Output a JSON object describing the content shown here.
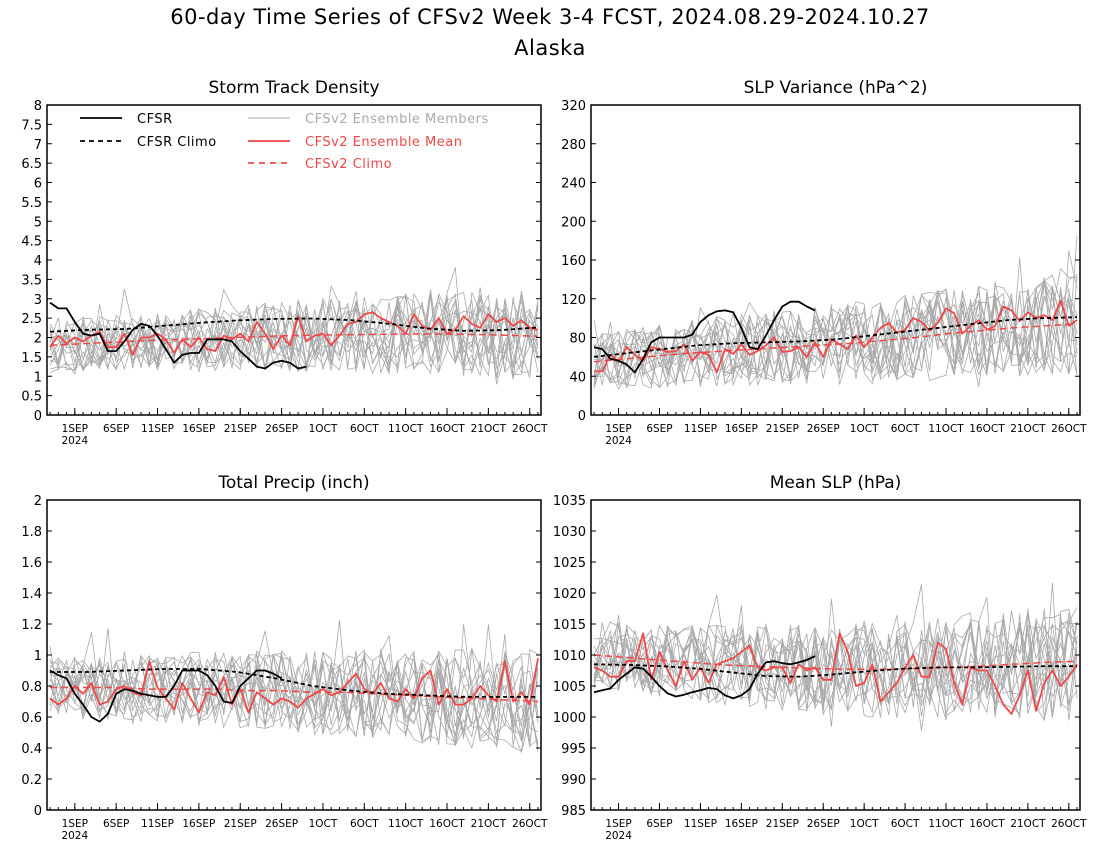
{
  "figure": {
    "title": "60-day Time Series of CFSv2 Week 3-4 FCST, 2024.08.29-2024.10.27",
    "region": "Alaska"
  },
  "colors": {
    "cfsr": "#000000",
    "cfsr_climo": "#000000",
    "members": "#a9a9a9",
    "ens_mean": "#f04848",
    "cfsv2_climo": "#f04848"
  },
  "legend": {
    "cfsr": "CFSR",
    "cfsr_climo": "CFSR Climo",
    "members": "CFSv2 Ensemble Members",
    "ens_mean": "CFSv2 Ensemble Mean",
    "cfsv2_climo": "CFSv2 Climo"
  },
  "x_ticks": {
    "labels": [
      "1SEP",
      "6SEP",
      "11SEP",
      "16SEP",
      "21SEP",
      "26SEP",
      "1OCT",
      "6OCT",
      "11OCT",
      "16OCT",
      "21OCT",
      "26OCT"
    ],
    "year_label": "2024"
  },
  "chart_data": [
    {
      "type": "line",
      "title": "Storm Track Density",
      "xlabel": "",
      "ylabel": "",
      "x_range": [
        "2024-08-29",
        "2024-10-27"
      ],
      "ylim": [
        0,
        8
      ],
      "yticks": [
        "0",
        "0.5",
        "1",
        "1.5",
        "2",
        "2.5",
        "3",
        "3.5",
        "4",
        "4.5",
        "5",
        "5.5",
        "6",
        "6.5",
        "7",
        "7.5",
        "8"
      ],
      "legend_location": "top-left",
      "series": [
        {
          "name": "CFSR",
          "start": "2024-08-29",
          "values": [
            2.9,
            2.75,
            2.75,
            2.4,
            2.1,
            2.05,
            2.1,
            1.65,
            1.65,
            1.9,
            2.2,
            2.35,
            2.3,
            2.05,
            1.7,
            1.35,
            1.55,
            1.6,
            1.6,
            1.95,
            1.95,
            1.95,
            1.9,
            1.65,
            1.45,
            1.25,
            1.2,
            1.35,
            1.4,
            1.35,
            1.2,
            1.25
          ]
        },
        {
          "name": "CFSR Climo",
          "start": "2024-08-29",
          "values": [
            2.15,
            2.2,
            2.22,
            2.3,
            2.38,
            2.44,
            2.48,
            2.49,
            2.45,
            2.36,
            2.24,
            2.17,
            2.19,
            2.26
          ]
        },
        {
          "name": "CFSv2 Ensemble Mean",
          "start": "2024-08-29",
          "values": [
            1.75,
            2.05,
            1.85,
            2.0,
            1.9,
            2.05,
            2.15,
            1.75,
            1.75,
            2.1,
            1.55,
            2.0,
            2.0,
            2.1,
            1.95,
            1.6,
            1.95,
            1.75,
            2.0,
            1.7,
            1.65,
            2.05,
            1.95,
            2.1,
            1.9,
            2.4,
            2.1,
            1.7,
            2.05,
            1.8,
            2.55,
            1.9,
            2.05,
            2.1,
            1.8,
            2.05,
            2.35,
            2.4,
            2.6,
            2.65,
            2.5,
            2.4,
            2.3,
            2.1,
            2.6,
            2.3,
            2.2,
            2.5,
            2.1,
            2.2,
            2.55,
            2.35,
            2.25,
            2.6,
            2.4,
            2.5,
            2.3,
            2.45,
            2.25,
            2.2
          ]
        },
        {
          "name": "CFSv2 Climo",
          "start": "2024-08-29",
          "values": [
            1.8,
            1.84,
            1.88,
            1.92,
            1.95,
            1.98,
            2.01,
            2.04,
            2.06,
            2.07,
            2.08,
            2.09,
            2.09,
            2.08,
            2.06,
            2.03
          ]
        }
      ],
      "members": {
        "count": 16,
        "spread": 0.55
      }
    },
    {
      "type": "line",
      "title": "SLP Variance (hPa^2)",
      "xlabel": "",
      "ylabel": "",
      "x_range": [
        "2024-08-29",
        "2024-10-27"
      ],
      "ylim": [
        0,
        320
      ],
      "yticks": [
        "0",
        "40",
        "80",
        "120",
        "160",
        "200",
        "240",
        "280",
        "320"
      ],
      "series": [
        {
          "name": "CFSR",
          "start": "2024-08-29",
          "values": [
            70,
            68,
            58,
            56,
            52,
            44,
            58,
            75,
            80,
            80,
            80,
            80,
            83,
            96,
            103,
            107,
            108,
            106,
            90,
            70,
            68,
            82,
            98,
            112,
            117,
            117,
            112,
            108
          ]
        },
        {
          "name": "CFSR Climo",
          "start": "2024-08-29",
          "values": [
            60,
            64,
            68,
            72,
            74,
            75,
            76,
            78,
            82,
            86,
            90,
            94,
            98,
            100,
            101
          ]
        },
        {
          "name": "CFSv2 Ensemble Mean",
          "start": "2024-08-29",
          "values": [
            45,
            45,
            62,
            55,
            70,
            62,
            56,
            70,
            68,
            65,
            66,
            73,
            56,
            65,
            62,
            44,
            68,
            63,
            73,
            62,
            66,
            72,
            80,
            65,
            66,
            70,
            60,
            75,
            60,
            78,
            73,
            68,
            82,
            70,
            80,
            90,
            95,
            85,
            88,
            100,
            96,
            87,
            95,
            110,
            105,
            84,
            92,
            98,
            88,
            92,
            112,
            108,
            97,
            106,
            100,
            103,
            98,
            118,
            92,
            98
          ]
        },
        {
          "name": "CFSv2 Climo",
          "start": "2024-08-29",
          "values": [
            55,
            58,
            61,
            64,
            66,
            68,
            70,
            72,
            74,
            77,
            80,
            84,
            87,
            90,
            92,
            94
          ]
        }
      ],
      "members": {
        "count": 16,
        "spread": 25
      }
    },
    {
      "type": "line",
      "title": "Total Precip (inch)",
      "xlabel": "",
      "ylabel": "",
      "x_range": [
        "2024-08-29",
        "2024-10-27"
      ],
      "ylim": [
        0,
        2
      ],
      "yticks": [
        "0",
        "0.2",
        "0.4",
        "0.6",
        "0.8",
        "1",
        "1.2",
        "1.4",
        "1.6",
        "1.8",
        "2"
      ],
      "series": [
        {
          "name": "CFSR",
          "start": "2024-08-29",
          "values": [
            0.9,
            0.87,
            0.85,
            0.75,
            0.68,
            0.6,
            0.57,
            0.62,
            0.75,
            0.78,
            0.77,
            0.75,
            0.74,
            0.73,
            0.73,
            0.8,
            0.9,
            0.9,
            0.9,
            0.87,
            0.8,
            0.7,
            0.69,
            0.8,
            0.85,
            0.9,
            0.9,
            0.88,
            0.85
          ]
        },
        {
          "name": "CFSR Climo",
          "start": "2024-08-29",
          "values": [
            0.89,
            0.89,
            0.9,
            0.91,
            0.91,
            0.89,
            0.85,
            0.8,
            0.77,
            0.75,
            0.74,
            0.73,
            0.73,
            0.73
          ]
        },
        {
          "name": "CFSv2 Ensemble Mean",
          "start": "2024-08-29",
          "values": [
            0.72,
            0.68,
            0.72,
            0.8,
            0.75,
            0.82,
            0.68,
            0.7,
            0.78,
            0.8,
            0.76,
            0.74,
            0.96,
            0.79,
            0.72,
            0.65,
            0.82,
            0.72,
            0.63,
            0.76,
            0.74,
            0.86,
            0.68,
            0.78,
            0.63,
            0.76,
            0.72,
            0.68,
            0.72,
            0.7,
            0.66,
            0.72,
            0.75,
            0.78,
            0.74,
            0.76,
            0.82,
            0.88,
            0.78,
            0.75,
            0.82,
            0.72,
            0.7,
            0.78,
            0.72,
            0.85,
            0.9,
            0.68,
            0.78,
            0.68,
            0.68,
            0.72,
            0.8,
            0.74,
            0.7,
            0.96,
            0.7,
            0.76,
            0.68,
            0.98
          ]
        },
        {
          "name": "CFSv2 Climo",
          "start": "2024-08-29",
          "values": [
            0.79,
            0.79,
            0.79,
            0.78,
            0.78,
            0.78,
            0.77,
            0.77,
            0.76,
            0.76,
            0.75,
            0.74,
            0.73,
            0.72,
            0.71,
            0.7
          ]
        }
      ],
      "members": {
        "count": 16,
        "spread": 0.16
      }
    },
    {
      "type": "line",
      "title": "Mean SLP (hPa)",
      "xlabel": "",
      "ylabel": "",
      "x_range": [
        "2024-08-29",
        "2024-10-27"
      ],
      "ylim": [
        985,
        1035
      ],
      "yticks": [
        "985",
        "990",
        "995",
        "1000",
        "1005",
        "1010",
        "1015",
        "1020",
        "1025",
        "1030",
        "1035"
      ],
      "series": [
        {
          "name": "CFSR",
          "start": "2024-08-29",
          "values": [
            1004.0,
            1004.3,
            1004.6,
            1006.0,
            1007.0,
            1008.0,
            1007.8,
            1006.5,
            1005.0,
            1003.8,
            1003.3,
            1003.6,
            1004.0,
            1004.3,
            1004.7,
            1004.5,
            1003.5,
            1003.0,
            1003.5,
            1004.5,
            1007.0,
            1008.8,
            1009.0,
            1008.7,
            1008.5,
            1008.8,
            1009.2,
            1009.8
          ]
        },
        {
          "name": "CFSR Climo",
          "start": "2024-08-29",
          "values": [
            1008.5,
            1008.4,
            1008.2,
            1007.8,
            1007.2,
            1006.6,
            1006.5,
            1006.9,
            1007.4,
            1007.8,
            1008.0,
            1008.0,
            1008.1,
            1008.2,
            1008.2
          ]
        },
        {
          "name": "CFSv2 Ensemble Mean",
          "start": "2024-08-29",
          "values": [
            1008.0,
            1007.5,
            1006.5,
            1006.5,
            1009.0,
            1009.0,
            1013.5,
            1006.0,
            1010.5,
            1007.5,
            1005.0,
            1009.0,
            1006.0,
            1008.0,
            1005.5,
            1008.5,
            1009.0,
            1009.5,
            1010.5,
            1011.5,
            1008.0,
            1007.5,
            1008.0,
            1008.0,
            1005.5,
            1008.5,
            1007.5,
            1008.0,
            1006.0,
            1006.0,
            1013.5,
            1010.5,
            1005.0,
            1005.5,
            1008.5,
            1002.5,
            1004.0,
            1005.5,
            1008.0,
            1010.0,
            1006.5,
            1006.5,
            1012.0,
            1011.0,
            1005.5,
            1002.0,
            1008.0,
            1007.5,
            1007.5,
            1005.0,
            1002.0,
            1000.5,
            1003.5,
            1007.5,
            1001.0,
            1005.5,
            1007.5,
            1005.0,
            1006.5,
            1008.5
          ]
        },
        {
          "name": "CFSv2 Climo",
          "start": "2024-08-29",
          "values": [
            1010.0,
            1009.6,
            1009.2,
            1008.8,
            1008.4,
            1008.2,
            1008.0,
            1007.8,
            1007.7,
            1007.7,
            1007.8,
            1008.0,
            1008.2,
            1008.5,
            1008.8,
            1009.0
          ]
        }
      ],
      "members": {
        "count": 16,
        "spread": 4.5
      }
    }
  ]
}
